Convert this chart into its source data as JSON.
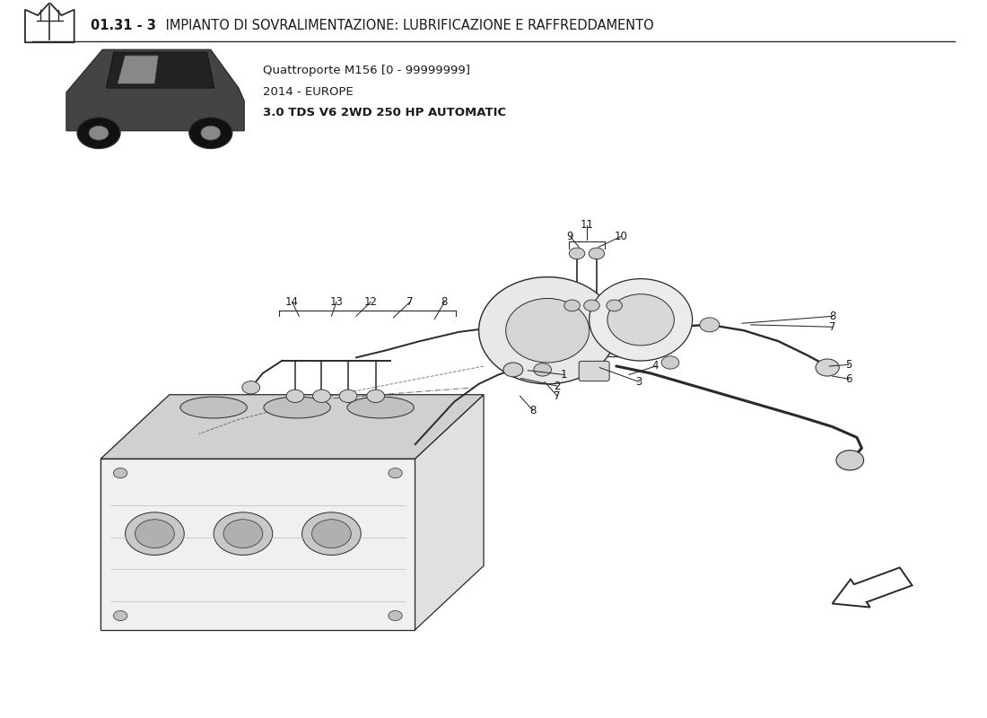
{
  "title_bold": "01.31 - 3",
  "title_rest": " IMPIANTO DI SOVRALIMENTAZIONE: LUBRIFICAZIONE E RAFFREDDAMENTO",
  "subtitle_lines": [
    "Quattroporte M156 [0 - 99999999]",
    "2014 - EUROPE",
    "3.0 TDS V6 2WD 250 HP AUTOMATIC"
  ],
  "bg_color": "#ffffff",
  "text_color": "#1a1a1a",
  "line_color": "#2a2a2a",
  "fig_width": 11.0,
  "fig_height": 8.0,
  "dpi": 100
}
